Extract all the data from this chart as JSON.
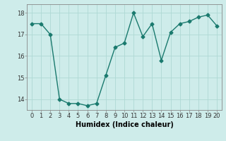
{
  "x": [
    0,
    1,
    2,
    3,
    4,
    5,
    6,
    7,
    8,
    9,
    10,
    11,
    12,
    13,
    14,
    15,
    16,
    17,
    18,
    19,
    20
  ],
  "y": [
    17.5,
    17.5,
    17.0,
    14.0,
    13.8,
    13.8,
    13.7,
    13.8,
    15.1,
    16.4,
    16.6,
    18.0,
    16.9,
    17.5,
    15.8,
    17.1,
    17.5,
    17.6,
    17.8,
    17.9,
    17.4
  ],
  "line_color": "#1a7a6e",
  "marker": "D",
  "marker_size": 2.5,
  "bg_color": "#ceecea",
  "grid_color": "#aed8d4",
  "xlabel": "Humidex (Indice chaleur)",
  "xlim": [
    -0.5,
    20.5
  ],
  "ylim": [
    13.5,
    18.4
  ],
  "yticks": [
    14,
    15,
    16,
    17,
    18
  ],
  "xticks": [
    0,
    1,
    2,
    3,
    4,
    5,
    6,
    7,
    8,
    9,
    10,
    11,
    12,
    13,
    14,
    15,
    16,
    17,
    18,
    19,
    20
  ],
  "tick_fontsize": 6,
  "xlabel_fontsize": 7,
  "linewidth": 1.0
}
